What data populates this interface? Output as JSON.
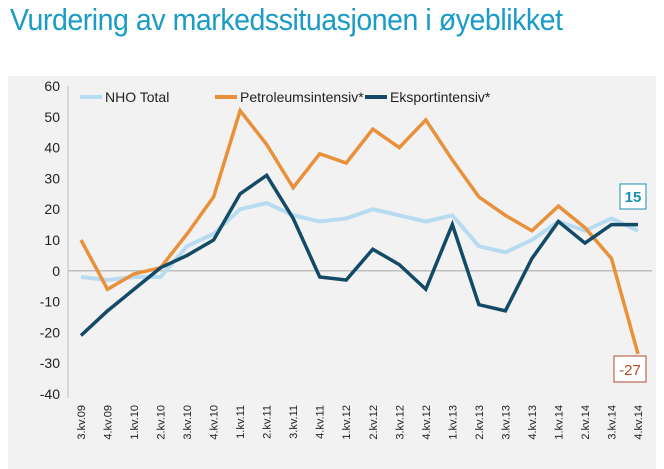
{
  "title": "Vurdering av markedssituasjonen i øyeblikket",
  "chart_data": {
    "type": "line",
    "title": "Vurdering av markedssituasjonen i øyeblikket",
    "categories": [
      "3.kv.09",
      "4.kv.09",
      "1.kv.10",
      "2.kv.10",
      "3.kv.10",
      "4.kv.10",
      "1.kv.11",
      "2.kv.11",
      "3.kv.11",
      "4.kv.11",
      "1.kv.12",
      "2.kv.12",
      "3.kv.12",
      "4.kv.12",
      "1.kv.13",
      "2.kv.13",
      "3.kv.13",
      "4.kv.13",
      "1.kv.14",
      "2.kv.14",
      "3.kv.14",
      "4.kv.14"
    ],
    "ylim": [
      -40,
      60
    ],
    "yticks": [
      60,
      50,
      40,
      30,
      20,
      10,
      0,
      -10,
      -20,
      -30,
      -40
    ],
    "grid": false,
    "legend": "top",
    "series": [
      {
        "name": "NHO Total",
        "color": "#b7dcf2",
        "values": [
          -2,
          -3,
          -2,
          -2,
          8,
          12,
          20,
          22,
          18,
          16,
          17,
          20,
          18,
          16,
          18,
          8,
          6,
          10,
          16,
          13,
          17,
          13
        ]
      },
      {
        "name": "Petroleumsintensiv*",
        "color": "#e8913a",
        "values": [
          10,
          -6,
          -1,
          1,
          12,
          24,
          52,
          41,
          27,
          38,
          35,
          46,
          40,
          49,
          36,
          24,
          18,
          13,
          21,
          14,
          4,
          -27
        ]
      },
      {
        "name": "Eksportintensiv*",
        "color": "#134a66",
        "values": [
          -21,
          -13,
          -6,
          1,
          5,
          10,
          25,
          31,
          17,
          -2,
          -3,
          7,
          2,
          -6,
          15,
          -11,
          -13,
          4,
          16,
          9,
          15,
          15
        ]
      }
    ],
    "annotations": [
      {
        "text": "15",
        "series": "Eksportintensiv*",
        "color": "#1b8fb0"
      },
      {
        "text": "-27",
        "series": "Petroleumsintensiv*",
        "color": "#b24a2e"
      }
    ]
  }
}
